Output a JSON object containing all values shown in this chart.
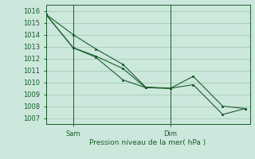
{
  "background_color": "#cce8dc",
  "grid_color": "#aacfbe",
  "line_color": "#1a5c2a",
  "xlabel": "Pression niveau de la mer( hPa )",
  "ylim": [
    1006.5,
    1016.5
  ],
  "yticks": [
    1007,
    1008,
    1009,
    1010,
    1011,
    1012,
    1013,
    1014,
    1015,
    1016
  ],
  "xlim": [
    0,
    9
  ],
  "xtick_positions": [
    1.2,
    5.5
  ],
  "xtick_labels": [
    "Sam",
    "Dim"
  ],
  "vlines": [
    1.2,
    5.5
  ],
  "series": [
    {
      "x": [
        0.0,
        1.2,
        2.2,
        3.4,
        4.4,
        5.5,
        6.5,
        7.8,
        8.8
      ],
      "y": [
        1015.7,
        1014.0,
        1012.8,
        1011.5,
        1009.6,
        1009.5,
        1009.8,
        1007.3,
        1007.8
      ]
    },
    {
      "x": [
        0.0,
        1.2,
        2.2,
        3.4,
        4.4,
        5.5,
        6.5,
        7.8,
        8.8
      ],
      "y": [
        1015.7,
        1012.9,
        1012.2,
        1011.15,
        1009.55,
        1009.5,
        1010.5,
        1008.0,
        1007.8
      ]
    },
    {
      "x": [
        0.0,
        1.2,
        2.2,
        3.4,
        4.4,
        5.5
      ],
      "y": [
        1015.7,
        1012.9,
        1012.1,
        1010.2,
        1009.55,
        1009.5
      ]
    }
  ]
}
